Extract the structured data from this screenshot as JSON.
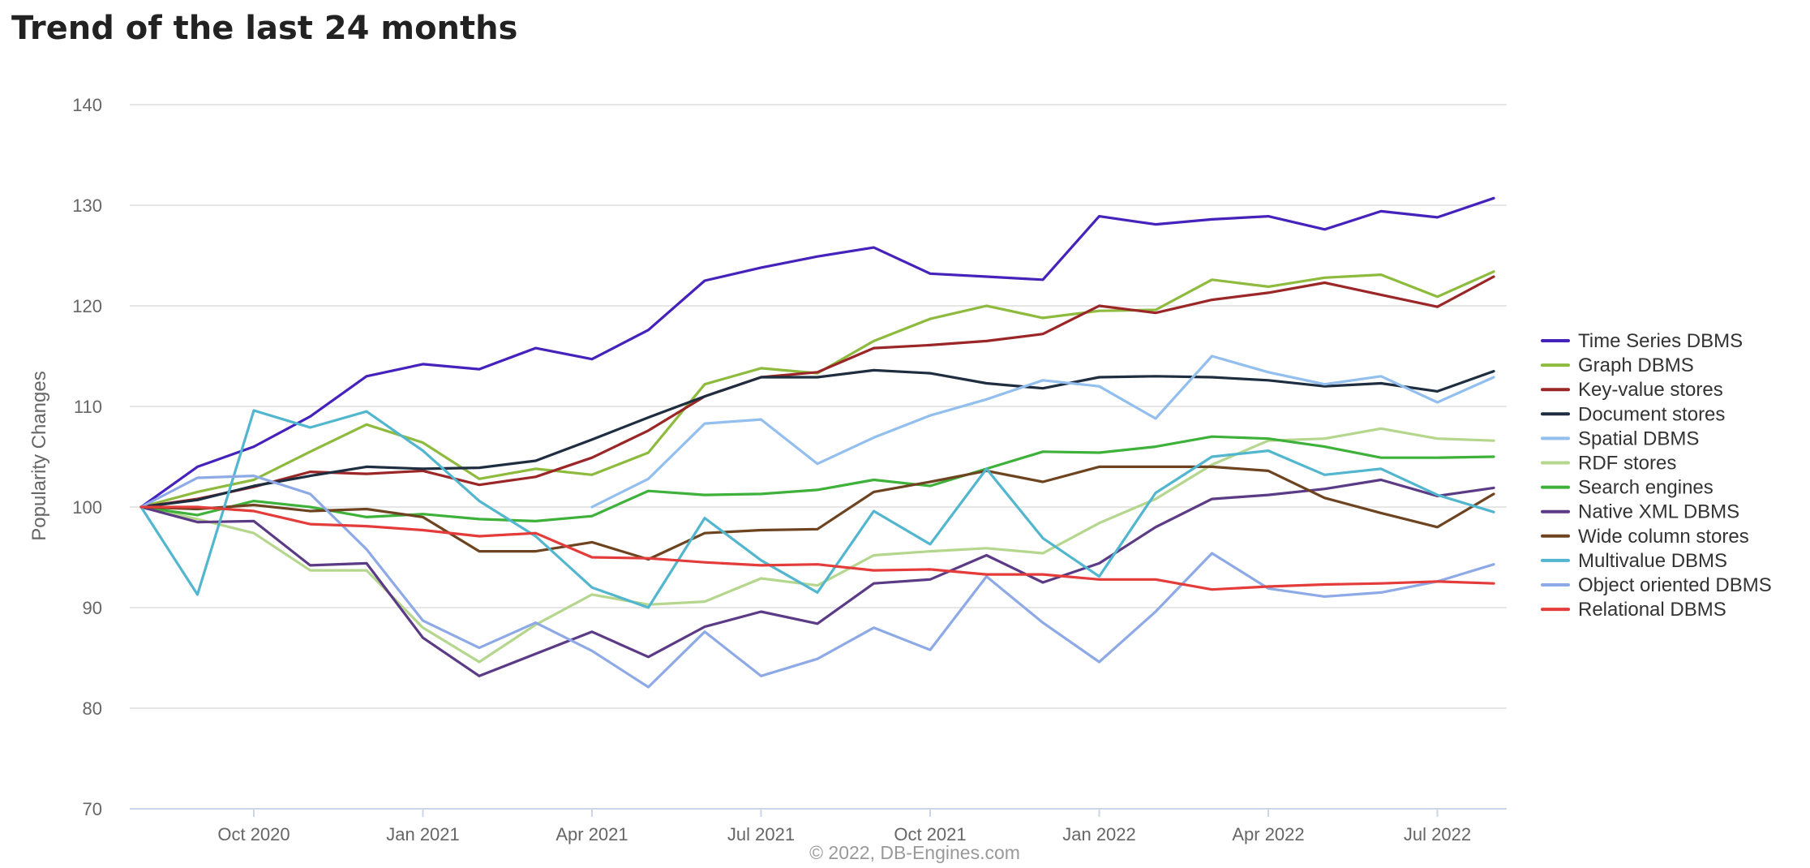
{
  "page": {
    "title": "Trend of the last 24 months"
  },
  "chart_data": {
    "type": "line",
    "title": "Trend of the last 24 months",
    "ylabel": "Popularity Changes",
    "xlabel": "",
    "credits": "© 2022, DB-Engines.com",
    "ylim": [
      70,
      140
    ],
    "yticks": [
      70,
      80,
      90,
      100,
      110,
      120,
      130,
      140
    ],
    "x": [
      "2020-08",
      "2020-09",
      "2020-10",
      "2020-11",
      "2020-12",
      "2021-01",
      "2021-02",
      "2021-03",
      "2021-04",
      "2021-05",
      "2021-06",
      "2021-07",
      "2021-08",
      "2021-09",
      "2021-10",
      "2021-11",
      "2021-12",
      "2022-01",
      "2022-02",
      "2022-03",
      "2022-04",
      "2022-05",
      "2022-06",
      "2022-07",
      "2022-08"
    ],
    "xtick_labels": [
      {
        "label": "Oct 2020",
        "x": "2020-10"
      },
      {
        "label": "Jan 2021",
        "x": "2021-01"
      },
      {
        "label": "Apr 2021",
        "x": "2021-04"
      },
      {
        "label": "Jul 2021",
        "x": "2021-07"
      },
      {
        "label": "Oct 2021",
        "x": "2021-10"
      },
      {
        "label": "Jan 2022",
        "x": "2022-01"
      },
      {
        "label": "Apr 2022",
        "x": "2022-04"
      },
      {
        "label": "Jul 2022",
        "x": "2022-07"
      }
    ],
    "grid": true,
    "legend_position": "right",
    "series": [
      {
        "name": "Time Series DBMS",
        "color": "#4422bb",
        "values": [
          100,
          104,
          106,
          109,
          113,
          114.2,
          113.7,
          115.8,
          114.7,
          117.6,
          122.5,
          123.8,
          124.9,
          125.8,
          123.2,
          122.9,
          122.6,
          128.9,
          128.1,
          128.6,
          128.9,
          127.6,
          129.4,
          128.8,
          130.7
        ]
      },
      {
        "name": "Graph DBMS",
        "color": "#8ebb3e",
        "values": [
          100,
          101.5,
          102.7,
          105.5,
          108.2,
          106.4,
          102.8,
          103.8,
          103.2,
          105.4,
          112.2,
          113.8,
          113.3,
          116.5,
          118.7,
          120,
          118.8,
          119.5,
          119.6,
          122.6,
          121.9,
          122.8,
          123.1,
          120.9,
          123.4
        ]
      },
      {
        "name": "Key-value stores",
        "color": "#9b2627",
        "values": [
          100,
          100.8,
          102,
          103.5,
          103.3,
          103.6,
          102.2,
          103,
          104.9,
          107.6,
          111,
          112.9,
          113.4,
          115.8,
          116.1,
          116.5,
          117.2,
          120,
          119.3,
          120.6,
          121.3,
          122.3,
          121.1,
          119.9,
          122.9
        ]
      },
      {
        "name": "Document stores",
        "color": "#1e2d3f",
        "values": [
          100,
          100.7,
          102.1,
          103.1,
          104,
          103.8,
          103.9,
          104.6,
          106.7,
          108.9,
          111,
          112.9,
          112.9,
          113.6,
          113.3,
          112.3,
          111.8,
          112.9,
          113,
          112.9,
          112.6,
          112,
          112.3,
          111.5,
          113.5
        ]
      },
      {
        "name": "Spatial DBMS",
        "color": "#92bfee",
        "values": [
          null,
          null,
          null,
          null,
          null,
          null,
          null,
          null,
          100,
          102.8,
          108.3,
          108.7,
          104.3,
          106.9,
          109.1,
          110.7,
          112.6,
          112,
          108.8,
          115,
          113.4,
          112.2,
          113,
          110.4,
          112.9
        ]
      },
      {
        "name": "RDF stores",
        "color": "#b5d68d",
        "values": [
          100,
          98.8,
          97.4,
          93.7,
          93.7,
          88,
          84.6,
          88.3,
          91.3,
          90.3,
          90.6,
          92.9,
          92.2,
          95.2,
          95.6,
          95.9,
          95.4,
          98.4,
          100.8,
          104.2,
          106.6,
          106.8,
          107.8,
          106.8,
          106.6
        ]
      },
      {
        "name": "Search engines",
        "color": "#3db13a",
        "values": [
          100,
          99.2,
          100.6,
          100,
          99,
          99.3,
          98.8,
          98.6,
          99.1,
          101.6,
          101.2,
          101.3,
          101.7,
          102.7,
          102.1,
          103.8,
          105.5,
          105.4,
          106,
          107,
          106.8,
          106,
          104.9,
          104.9,
          105
        ]
      },
      {
        "name": "Native XML DBMS",
        "color": "#5b3a86",
        "values": [
          100,
          98.5,
          98.6,
          94.2,
          94.4,
          87,
          83.2,
          85.4,
          87.6,
          85.1,
          88.1,
          89.6,
          88.4,
          92.4,
          92.8,
          95.2,
          92.5,
          94.4,
          98,
          100.8,
          101.2,
          101.8,
          102.7,
          101.1,
          101.9
        ]
      },
      {
        "name": "Wide column stores",
        "color": "#6e4320",
        "values": [
          100,
          99.8,
          100.2,
          99.6,
          99.8,
          99,
          95.6,
          95.6,
          96.5,
          94.8,
          97.4,
          97.7,
          97.8,
          101.5,
          102.5,
          103.6,
          102.5,
          104,
          104,
          104,
          103.6,
          100.9,
          99.4,
          98,
          101.3
        ]
      },
      {
        "name": "Multivalue DBMS",
        "color": "#52b6cf",
        "values": [
          100,
          91.3,
          109.6,
          107.9,
          109.5,
          105.6,
          100.6,
          97.1,
          92,
          90,
          98.9,
          94.7,
          91.5,
          99.6,
          96.3,
          103.8,
          96.9,
          93.1,
          101.4,
          105,
          105.6,
          103.2,
          103.8,
          101.2,
          99.5
        ]
      },
      {
        "name": "Object oriented DBMS",
        "color": "#8eaae6",
        "values": [
          100,
          102.9,
          103.1,
          101.3,
          95.8,
          88.7,
          86,
          88.5,
          85.7,
          82.1,
          87.6,
          83.2,
          84.9,
          88,
          85.8,
          93.1,
          88.5,
          84.6,
          89.6,
          95.4,
          91.9,
          91.1,
          91.5,
          92.6,
          94.3
        ]
      },
      {
        "name": "Relational DBMS",
        "color": "#e43b3b",
        "values": [
          100,
          100,
          99.6,
          98.3,
          98.1,
          97.7,
          97.1,
          97.4,
          95,
          94.9,
          94.5,
          94.2,
          94.3,
          93.7,
          93.8,
          93.3,
          93.3,
          92.8,
          92.8,
          91.8,
          92.1,
          92.3,
          92.4,
          92.6,
          92.4
        ]
      }
    ]
  }
}
